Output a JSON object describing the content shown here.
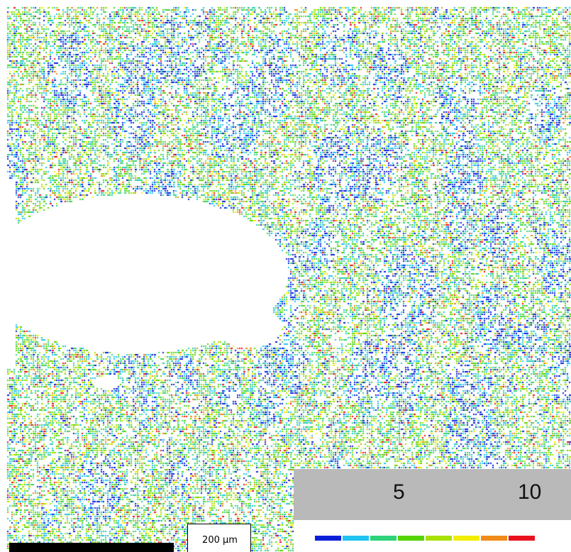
{
  "map": {
    "palette": [
      "#0a1fd8",
      "#21c4f0",
      "#2ed27a",
      "#55d400",
      "#a8e000",
      "#f3ee00",
      "#f08a18",
      "#e8121f"
    ]
  },
  "scale_bar": {
    "label": "200 µm",
    "bar_color": "#000000"
  },
  "legend": {
    "tick_low": "5",
    "tick_high": "10",
    "swatches": [
      {
        "color": "#0a1fd8",
        "icon": "blue"
      },
      {
        "color": "#21c4f0",
        "icon": "cyan"
      },
      {
        "color": "#2ed27a",
        "icon": "teal-green"
      },
      {
        "color": "#55d400",
        "icon": "green"
      },
      {
        "color": "#a8e000",
        "icon": "yellow-green"
      },
      {
        "color": "#f3ee00",
        "icon": "yellow"
      },
      {
        "color": "#f08a18",
        "icon": "orange"
      },
      {
        "color": "#e8121f",
        "icon": "red"
      }
    ]
  }
}
